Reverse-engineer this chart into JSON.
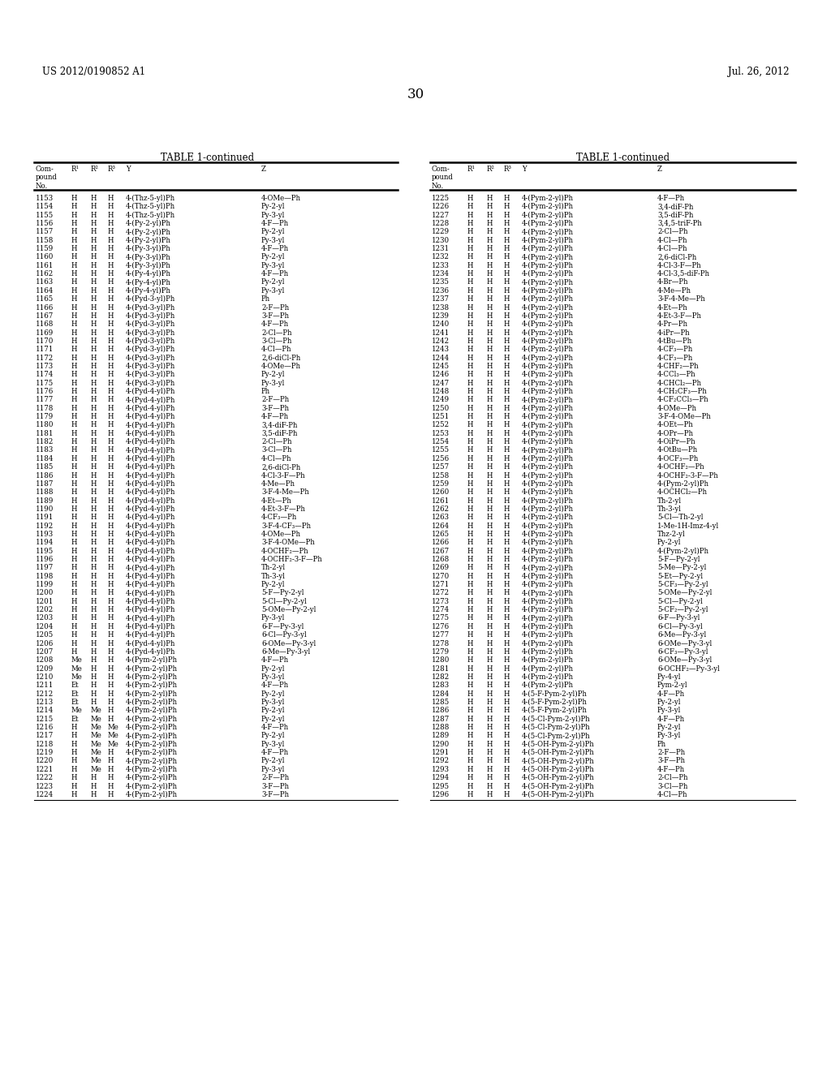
{
  "header_left": "US 2012/0190852 A1",
  "header_right": "Jul. 26, 2012",
  "page_number": "30",
  "table_title": "TABLE 1-continued",
  "left_table": [
    [
      "1153",
      "H",
      "H",
      "H",
      "4-(Thz-5-yl)Ph",
      "4-OMe—Ph"
    ],
    [
      "1154",
      "H",
      "H",
      "H",
      "4-(Thz-5-yl)Ph",
      "Py-2-yl"
    ],
    [
      "1155",
      "H",
      "H",
      "H",
      "4-(Thz-5-yl)Ph",
      "Py-3-yl"
    ],
    [
      "1156",
      "H",
      "H",
      "H",
      "4-(Py-2-yl)Ph",
      "4-F—Ph"
    ],
    [
      "1157",
      "H",
      "H",
      "H",
      "4-(Py-2-yl)Ph",
      "Py-2-yl"
    ],
    [
      "1158",
      "H",
      "H",
      "H",
      "4-(Py-2-yl)Ph",
      "Py-3-yl"
    ],
    [
      "1159",
      "H",
      "H",
      "H",
      "4-(Py-3-yl)Ph",
      "4-F—Ph"
    ],
    [
      "1160",
      "H",
      "H",
      "H",
      "4-(Py-3-yl)Ph",
      "Py-2-yl"
    ],
    [
      "1161",
      "H",
      "H",
      "H",
      "4-(Py-3-yl)Ph",
      "Py-3-yl"
    ],
    [
      "1162",
      "H",
      "H",
      "H",
      "4-(Py-4-yl)Ph",
      "4-F—Ph"
    ],
    [
      "1163",
      "H",
      "H",
      "H",
      "4-(Py-4-yl)Ph",
      "Py-2-yl"
    ],
    [
      "1164",
      "H",
      "H",
      "H",
      "4-(Py-4-yl)Ph",
      "Py-3-yl"
    ],
    [
      "1165",
      "H",
      "H",
      "H",
      "4-(Pyd-3-yl)Ph",
      "Ph"
    ],
    [
      "1166",
      "H",
      "H",
      "H",
      "4-(Pyd-3-yl)Ph",
      "2-F—Ph"
    ],
    [
      "1167",
      "H",
      "H",
      "H",
      "4-(Pyd-3-yl)Ph",
      "3-F—Ph"
    ],
    [
      "1168",
      "H",
      "H",
      "H",
      "4-(Pyd-3-yl)Ph",
      "4-F—Ph"
    ],
    [
      "1169",
      "H",
      "H",
      "H",
      "4-(Pyd-3-yl)Ph",
      "2-Cl—Ph"
    ],
    [
      "1170",
      "H",
      "H",
      "H",
      "4-(Pyd-3-yl)Ph",
      "3-Cl—Ph"
    ],
    [
      "1171",
      "H",
      "H",
      "H",
      "4-(Pyd-3-yl)Ph",
      "4-Cl—Ph"
    ],
    [
      "1172",
      "H",
      "H",
      "H",
      "4-(Pyd-3-yl)Ph",
      "2,6-diCl-Ph"
    ],
    [
      "1173",
      "H",
      "H",
      "H",
      "4-(Pyd-3-yl)Ph",
      "4-OMe—Ph"
    ],
    [
      "1174",
      "H",
      "H",
      "H",
      "4-(Pyd-3-yl)Ph",
      "Py-2-yl"
    ],
    [
      "1175",
      "H",
      "H",
      "H",
      "4-(Pyd-3-yl)Ph",
      "Py-3-yl"
    ],
    [
      "1176",
      "H",
      "H",
      "H",
      "4-(Pyd-4-yl)Ph",
      "Ph"
    ],
    [
      "1177",
      "H",
      "H",
      "H",
      "4-(Pyd-4-yl)Ph",
      "2-F—Ph"
    ],
    [
      "1178",
      "H",
      "H",
      "H",
      "4-(Pyd-4-yl)Ph",
      "3-F—Ph"
    ],
    [
      "1179",
      "H",
      "H",
      "H",
      "4-(Pyd-4-yl)Ph",
      "4-F—Ph"
    ],
    [
      "1180",
      "H",
      "H",
      "H",
      "4-(Pyd-4-yl)Ph",
      "3,4-diF-Ph"
    ],
    [
      "1181",
      "H",
      "H",
      "H",
      "4-(Pyd-4-yl)Ph",
      "3,5-diF-Ph"
    ],
    [
      "1182",
      "H",
      "H",
      "H",
      "4-(Pyd-4-yl)Ph",
      "2-Cl—Ph"
    ],
    [
      "1183",
      "H",
      "H",
      "H",
      "4-(Pyd-4-yl)Ph",
      "3-Cl—Ph"
    ],
    [
      "1184",
      "H",
      "H",
      "H",
      "4-(Pyd-4-yl)Ph",
      "4-Cl—Ph"
    ],
    [
      "1185",
      "H",
      "H",
      "H",
      "4-(Pyd-4-yl)Ph",
      "2,6-diCl-Ph"
    ],
    [
      "1186",
      "H",
      "H",
      "H",
      "4-(Pyd-4-yl)Ph",
      "4-Cl-3-F—Ph"
    ],
    [
      "1187",
      "H",
      "H",
      "H",
      "4-(Pyd-4-yl)Ph",
      "4-Me—Ph"
    ],
    [
      "1188",
      "H",
      "H",
      "H",
      "4-(Pyd-4-yl)Ph",
      "3-F-4-Me—Ph"
    ],
    [
      "1189",
      "H",
      "H",
      "H",
      "4-(Pyd-4-yl)Ph",
      "4-Et—Ph"
    ],
    [
      "1190",
      "H",
      "H",
      "H",
      "4-(Pyd-4-yl)Ph",
      "4-Et-3-F—Ph"
    ],
    [
      "1191",
      "H",
      "H",
      "H",
      "4-(Pyd-4-yl)Ph",
      "4-CF₃—Ph"
    ],
    [
      "1192",
      "H",
      "H",
      "H",
      "4-(Pyd-4-yl)Ph",
      "3-F-4-CF₃—Ph"
    ],
    [
      "1193",
      "H",
      "H",
      "H",
      "4-(Pyd-4-yl)Ph",
      "4-OMe—Ph"
    ],
    [
      "1194",
      "H",
      "H",
      "H",
      "4-(Pyd-4-yl)Ph",
      "3-F-4-OMe—Ph"
    ],
    [
      "1195",
      "H",
      "H",
      "H",
      "4-(Pyd-4-yl)Ph",
      "4-OCHF₂—Ph"
    ],
    [
      "1196",
      "H",
      "H",
      "H",
      "4-(Pyd-4-yl)Ph",
      "4-OCHF₂-3-F—Ph"
    ],
    [
      "1197",
      "H",
      "H",
      "H",
      "4-(Pyd-4-yl)Ph",
      "Th-2-yl"
    ],
    [
      "1198",
      "H",
      "H",
      "H",
      "4-(Pyd-4-yl)Ph",
      "Th-3-yl"
    ],
    [
      "1199",
      "H",
      "H",
      "H",
      "4-(Pyd-4-yl)Ph",
      "Py-2-yl"
    ],
    [
      "1200",
      "H",
      "H",
      "H",
      "4-(Pyd-4-yl)Ph",
      "5-F—Py-2-yl"
    ],
    [
      "1201",
      "H",
      "H",
      "H",
      "4-(Pyd-4-yl)Ph",
      "5-Cl—Py-2-yl"
    ],
    [
      "1202",
      "H",
      "H",
      "H",
      "4-(Pyd-4-yl)Ph",
      "5-OMe—Py-2-yl"
    ],
    [
      "1203",
      "H",
      "H",
      "H",
      "4-(Pyd-4-yl)Ph",
      "Py-3-yl"
    ],
    [
      "1204",
      "H",
      "H",
      "H",
      "4-(Pyd-4-yl)Ph",
      "6-F—Py-3-yl"
    ],
    [
      "1205",
      "H",
      "H",
      "H",
      "4-(Pyd-4-yl)Ph",
      "6-Cl—Py-3-yl"
    ],
    [
      "1206",
      "H",
      "H",
      "H",
      "4-(Pyd-4-yl)Ph",
      "6-OMe—Py-3-yl"
    ],
    [
      "1207",
      "H",
      "H",
      "H",
      "4-(Pyd-4-yl)Ph",
      "6-Me—Py-3-yl"
    ],
    [
      "1208",
      "Me",
      "H",
      "H",
      "4-(Pym-2-yl)Ph",
      "4-F—Ph"
    ],
    [
      "1209",
      "Me",
      "H",
      "H",
      "4-(Pym-2-yl)Ph",
      "Py-2-yl"
    ],
    [
      "1210",
      "Me",
      "H",
      "H",
      "4-(Pym-2-yl)Ph",
      "Py-3-yl"
    ],
    [
      "1211",
      "Et",
      "H",
      "H",
      "4-(Pym-2-yl)Ph",
      "4-F—Ph"
    ],
    [
      "1212",
      "Et",
      "H",
      "H",
      "4-(Pym-2-yl)Ph",
      "Py-2-yl"
    ],
    [
      "1213",
      "Et",
      "H",
      "H",
      "4-(Pym-2-yl)Ph",
      "Py-3-yl"
    ],
    [
      "1214",
      "Me",
      "Me",
      "H",
      "4-(Pym-2-yl)Ph",
      "Py-2-yl"
    ],
    [
      "1215",
      "Et",
      "Me",
      "H",
      "4-(Pym-2-yl)Ph",
      "Py-2-yl"
    ],
    [
      "1216",
      "H",
      "Me",
      "Me",
      "4-(Pym-2-yl)Ph",
      "4-F—Ph"
    ],
    [
      "1217",
      "H",
      "Me",
      "Me",
      "4-(Pym-2-yl)Ph",
      "Py-2-yl"
    ],
    [
      "1218",
      "H",
      "Me",
      "Me",
      "4-(Pym-2-yl)Ph",
      "Py-3-yl"
    ],
    [
      "1219",
      "H",
      "Me",
      "H",
      "4-(Pym-2-yl)Ph",
      "4-F—Ph"
    ],
    [
      "1220",
      "H",
      "Me",
      "H",
      "4-(Pym-2-yl)Ph",
      "Py-2-yl"
    ],
    [
      "1221",
      "H",
      "Me",
      "H",
      "4-(Pym-2-yl)Ph",
      "Py-3-yl"
    ],
    [
      "1222",
      "H",
      "H",
      "H",
      "4-(Pym-2-yl)Ph",
      "2-F—Ph"
    ],
    [
      "1223",
      "H",
      "H",
      "H",
      "4-(Pym-2-yl)Ph",
      "3-F—Ph"
    ],
    [
      "1224",
      "H",
      "H",
      "H",
      "4-(Pym-2-yl)Ph",
      "3-F—Ph"
    ]
  ],
  "right_table": [
    [
      "1225",
      "H",
      "H",
      "H",
      "4-(Pym-2-yl)Ph",
      "4-F—Ph"
    ],
    [
      "1226",
      "H",
      "H",
      "H",
      "4-(Pym-2-yl)Ph",
      "3,4-diF-Ph"
    ],
    [
      "1227",
      "H",
      "H",
      "H",
      "4-(Pym-2-yl)Ph",
      "3,5-diF-Ph"
    ],
    [
      "1228",
      "H",
      "H",
      "H",
      "4-(Pym-2-yl)Ph",
      "3,4,5-triF-Ph"
    ],
    [
      "1229",
      "H",
      "H",
      "H",
      "4-(Pym-2-yl)Ph",
      "2-Cl—Ph"
    ],
    [
      "1230",
      "H",
      "H",
      "H",
      "4-(Pym-2-yl)Ph",
      "4-Cl—Ph"
    ],
    [
      "1231",
      "H",
      "H",
      "H",
      "4-(Pym-2-yl)Ph",
      "4-Cl—Ph"
    ],
    [
      "1232",
      "H",
      "H",
      "H",
      "4-(Pym-2-yl)Ph",
      "2,6-diCl-Ph"
    ],
    [
      "1233",
      "H",
      "H",
      "H",
      "4-(Pym-2-yl)Ph",
      "4-Cl-3-F—Ph"
    ],
    [
      "1234",
      "H",
      "H",
      "H",
      "4-(Pym-2-yl)Ph",
      "4-Cl-3,5-diF-Ph"
    ],
    [
      "1235",
      "H",
      "H",
      "H",
      "4-(Pym-2-yl)Ph",
      "4-Br—Ph"
    ],
    [
      "1236",
      "H",
      "H",
      "H",
      "4-(Pym-2-yl)Ph",
      "4-Me—Ph"
    ],
    [
      "1237",
      "H",
      "H",
      "H",
      "4-(Pym-2-yl)Ph",
      "3-F-4-Me—Ph"
    ],
    [
      "1238",
      "H",
      "H",
      "H",
      "4-(Pym-2-yl)Ph",
      "4-Et—Ph"
    ],
    [
      "1239",
      "H",
      "H",
      "H",
      "4-(Pym-2-yl)Ph",
      "4-Et-3-F—Ph"
    ],
    [
      "1240",
      "H",
      "H",
      "H",
      "4-(Pym-2-yl)Ph",
      "4-Pr—Ph"
    ],
    [
      "1241",
      "H",
      "H",
      "H",
      "4-(Pym-2-yl)Ph",
      "4-iPr—Ph"
    ],
    [
      "1242",
      "H",
      "H",
      "H",
      "4-(Pym-2-yl)Ph",
      "4-tBu—Ph"
    ],
    [
      "1243",
      "H",
      "H",
      "H",
      "4-(Pym-2-yl)Ph",
      "4-CF₃—Ph"
    ],
    [
      "1244",
      "H",
      "H",
      "H",
      "4-(Pym-2-yl)Ph",
      "4-CF₃—Ph"
    ],
    [
      "1245",
      "H",
      "H",
      "H",
      "4-(Pym-2-yl)Ph",
      "4-CHF₂—Ph"
    ],
    [
      "1246",
      "H",
      "H",
      "H",
      "4-(Pym-2-yl)Ph",
      "4-CCl₃—Ph"
    ],
    [
      "1247",
      "H",
      "H",
      "H",
      "4-(Pym-2-yl)Ph",
      "4-CHCl₂—Ph"
    ],
    [
      "1248",
      "H",
      "H",
      "H",
      "4-(Pym-2-yl)Ph",
      "4-CH₂CF₃—Ph"
    ],
    [
      "1249",
      "H",
      "H",
      "H",
      "4-(Pym-2-yl)Ph",
      "4-CF₂CCl₃—Ph"
    ],
    [
      "1250",
      "H",
      "H",
      "H",
      "4-(Pym-2-yl)Ph",
      "4-OMe—Ph"
    ],
    [
      "1251",
      "H",
      "H",
      "H",
      "4-(Pym-2-yl)Ph",
      "3-F-4-OMe—Ph"
    ],
    [
      "1252",
      "H",
      "H",
      "H",
      "4-(Pym-2-yl)Ph",
      "4-OEt—Ph"
    ],
    [
      "1253",
      "H",
      "H",
      "H",
      "4-(Pym-2-yl)Ph",
      "4-OPr—Ph"
    ],
    [
      "1254",
      "H",
      "H",
      "H",
      "4-(Pym-2-yl)Ph",
      "4-OiPr—Ph"
    ],
    [
      "1255",
      "H",
      "H",
      "H",
      "4-(Pym-2-yl)Ph",
      "4-OtBu—Ph"
    ],
    [
      "1256",
      "H",
      "H",
      "H",
      "4-(Pym-2-yl)Ph",
      "4-OCF₃—Ph"
    ],
    [
      "1257",
      "H",
      "H",
      "H",
      "4-(Pym-2-yl)Ph",
      "4-OCHF₂—Ph"
    ],
    [
      "1258",
      "H",
      "H",
      "H",
      "4-(Pym-2-yl)Ph",
      "4-OCHF₂-3-F—Ph"
    ],
    [
      "1259",
      "H",
      "H",
      "H",
      "4-(Pym-2-yl)Ph",
      "4-(Pym-2-yl)Ph"
    ],
    [
      "1260",
      "H",
      "H",
      "H",
      "4-(Pym-2-yl)Ph",
      "4-OCHCl₂—Ph"
    ],
    [
      "1261",
      "H",
      "H",
      "H",
      "4-(Pym-2-yl)Ph",
      "Th-2-yl"
    ],
    [
      "1262",
      "H",
      "H",
      "H",
      "4-(Pym-2-yl)Ph",
      "Th-3-yl"
    ],
    [
      "1263",
      "H",
      "H",
      "H",
      "4-(Pym-2-yl)Ph",
      "5-Cl—Th-2-yl"
    ],
    [
      "1264",
      "H",
      "H",
      "H",
      "4-(Pym-2-yl)Ph",
      "1-Me-1H-Imz-4-yl"
    ],
    [
      "1265",
      "H",
      "H",
      "H",
      "4-(Pym-2-yl)Ph",
      "Thz-2-yl"
    ],
    [
      "1266",
      "H",
      "H",
      "H",
      "4-(Pym-2-yl)Ph",
      "Py-2-yl"
    ],
    [
      "1267",
      "H",
      "H",
      "H",
      "4-(Pym-2-yl)Ph",
      "4-(Pym-2-yl)Ph"
    ],
    [
      "1268",
      "H",
      "H",
      "H",
      "4-(Pym-2-yl)Ph",
      "5-F—Py-2-yl"
    ],
    [
      "1269",
      "H",
      "H",
      "H",
      "4-(Pym-2-yl)Ph",
      "5-Me—Py-2-yl"
    ],
    [
      "1270",
      "H",
      "H",
      "H",
      "4-(Pym-2-yl)Ph",
      "5-Et—Py-2-yl"
    ],
    [
      "1271",
      "H",
      "H",
      "H",
      "4-(Pym-2-yl)Ph",
      "5-CF₃—Py-2-yl"
    ],
    [
      "1272",
      "H",
      "H",
      "H",
      "4-(Pym-2-yl)Ph",
      "5-OMe—Py-2-yl"
    ],
    [
      "1273",
      "H",
      "H",
      "H",
      "4-(Pym-2-yl)Ph",
      "5-Cl—Py-2-yl"
    ],
    [
      "1274",
      "H",
      "H",
      "H",
      "4-(Pym-2-yl)Ph",
      "5-CF₂—Py-2-yl"
    ],
    [
      "1275",
      "H",
      "H",
      "H",
      "4-(Pym-2-yl)Ph",
      "6-F—Py-3-yl"
    ],
    [
      "1276",
      "H",
      "H",
      "H",
      "4-(Pym-2-yl)Ph",
      "6-Cl—Py-3-yl"
    ],
    [
      "1277",
      "H",
      "H",
      "H",
      "4-(Pym-2-yl)Ph",
      "6-Me—Py-3-yl"
    ],
    [
      "1278",
      "H",
      "H",
      "H",
      "4-(Pym-2-yl)Ph",
      "6-OMe—Py-3-yl"
    ],
    [
      "1279",
      "H",
      "H",
      "H",
      "4-(Pym-2-yl)Ph",
      "6-CF₃—Py-3-yl"
    ],
    [
      "1280",
      "H",
      "H",
      "H",
      "4-(Pym-2-yl)Ph",
      "6-OMe—Py-3-yl"
    ],
    [
      "1281",
      "H",
      "H",
      "H",
      "4-(Pym-2-yl)Ph",
      "6-OCHF₂—Py-3-yl"
    ],
    [
      "1282",
      "H",
      "H",
      "H",
      "4-(Pym-2-yl)Ph",
      "Py-4-yl"
    ],
    [
      "1283",
      "H",
      "H",
      "H",
      "4-(Pym-2-yl)Ph",
      "Pym-2-yl"
    ],
    [
      "1284",
      "H",
      "H",
      "H",
      "4-(5-F-Pym-2-yl)Ph",
      "4-F—Ph"
    ],
    [
      "1285",
      "H",
      "H",
      "H",
      "4-(5-F-Pym-2-yl)Ph",
      "Py-2-yl"
    ],
    [
      "1286",
      "H",
      "H",
      "H",
      "4-(5-F-Pym-2-yl)Ph",
      "Py-3-yl"
    ],
    [
      "1287",
      "H",
      "H",
      "H",
      "4-(5-Cl-Pym-2-yl)Ph",
      "4-F—Ph"
    ],
    [
      "1288",
      "H",
      "H",
      "H",
      "4-(5-Cl-Pym-2-yl)Ph",
      "Py-2-yl"
    ],
    [
      "1289",
      "H",
      "H",
      "H",
      "4-(5-Cl-Pym-2-yl)Ph",
      "Py-3-yl"
    ],
    [
      "1290",
      "H",
      "H",
      "H",
      "4-(5-OH-Pym-2-yl)Ph",
      "Ph"
    ],
    [
      "1291",
      "H",
      "H",
      "H",
      "4-(5-OH-Pym-2-yl)Ph",
      "2-F—Ph"
    ],
    [
      "1292",
      "H",
      "H",
      "H",
      "4-(5-OH-Pym-2-yl)Ph",
      "3-F—Ph"
    ],
    [
      "1293",
      "H",
      "H",
      "H",
      "4-(5-OH-Pym-2-yl)Ph",
      "4-F—Ph"
    ],
    [
      "1294",
      "H",
      "H",
      "H",
      "4-(5-OH-Pym-2-yl)Ph",
      "2-Cl—Ph"
    ],
    [
      "1295",
      "H",
      "H",
      "H",
      "4-(5-OH-Pym-2-yl)Ph",
      "3-Cl—Ph"
    ],
    [
      "1296",
      "H",
      "H",
      "H",
      "4-(5-OH-Pym-2-yl)Ph",
      "4-Cl—Ph"
    ]
  ],
  "background_color": "#ffffff",
  "text_color": "#000000",
  "line_color": "#000000",
  "font_size": 6.2,
  "header_font_size": 8.5,
  "title_font_size": 8.5,
  "page_num_font_size": 12
}
